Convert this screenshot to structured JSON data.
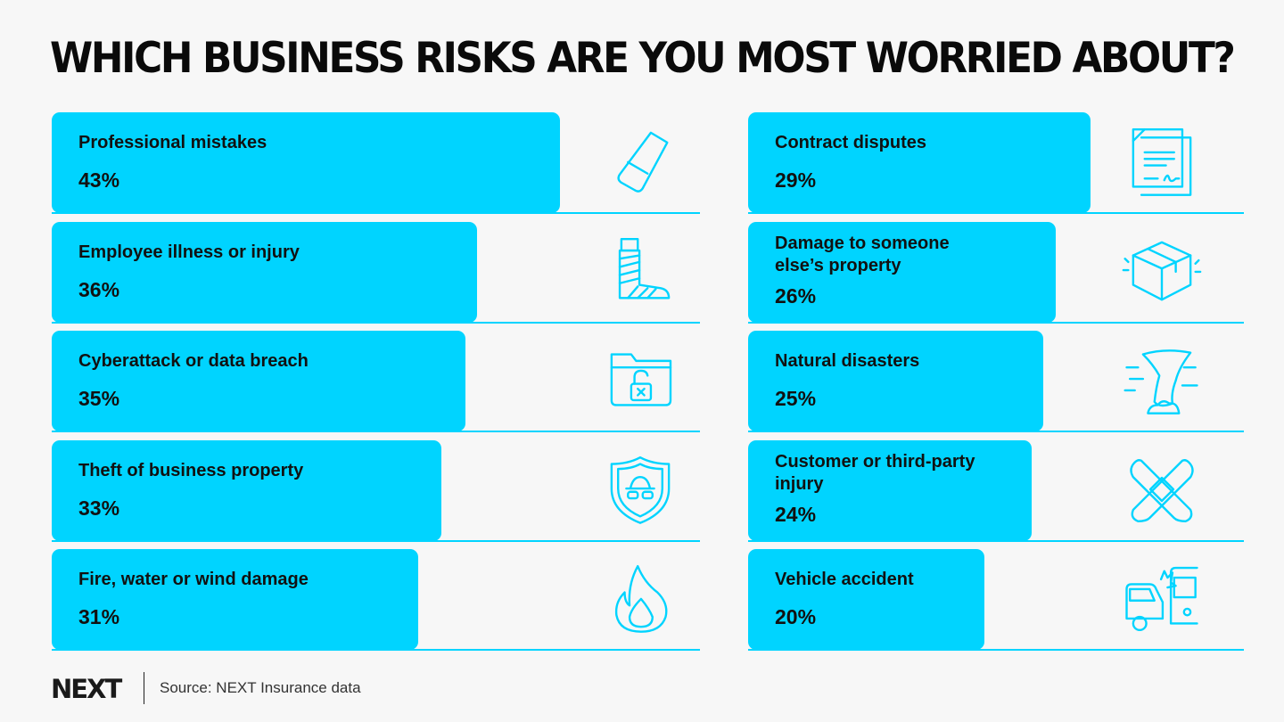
{
  "chart_data": {
    "type": "bar",
    "title": "WHICH BUSINESS RISKS ARE YOU MOST WORRIED ABOUT?",
    "orientation": "horizontal",
    "unit": "%",
    "xlim": [
      0,
      100
    ],
    "bar_color": "#00d4ff",
    "columns": [
      {
        "items": [
          {
            "label": "Professional mistakes",
            "value": 43,
            "value_label": "43%",
            "icon": "eraser-icon"
          },
          {
            "label": "Employee illness or injury",
            "value": 36,
            "value_label": "36%",
            "icon": "leg-cast-icon"
          },
          {
            "label": "Cyberattack or data breach",
            "value": 35,
            "value_label": "35%",
            "icon": "unlocked-folder-icon"
          },
          {
            "label": "Theft of business property",
            "value": 33,
            "value_label": "33%",
            "icon": "burglar-shield-icon"
          },
          {
            "label": "Fire, water or wind damage",
            "value": 31,
            "value_label": "31%",
            "icon": "flame-icon"
          }
        ]
      },
      {
        "items": [
          {
            "label": "Contract disputes",
            "value": 29,
            "value_label": "29%",
            "icon": "contract-document-icon"
          },
          {
            "label": "Damage to someone\nelse’s property",
            "value": 26,
            "value_label": "26%",
            "icon": "damaged-box-icon"
          },
          {
            "label": "Natural disasters",
            "value": 25,
            "value_label": "25%",
            "icon": "tornado-icon"
          },
          {
            "label": "Customer or third-party\ninjury",
            "value": 24,
            "value_label": "24%",
            "icon": "bandage-icon"
          },
          {
            "label": "Vehicle accident",
            "value": 20,
            "value_label": "20%",
            "icon": "car-crash-icon"
          }
        ]
      }
    ]
  },
  "footer": {
    "logo": "NEXT",
    "source": "Source: NEXT Insurance data"
  }
}
